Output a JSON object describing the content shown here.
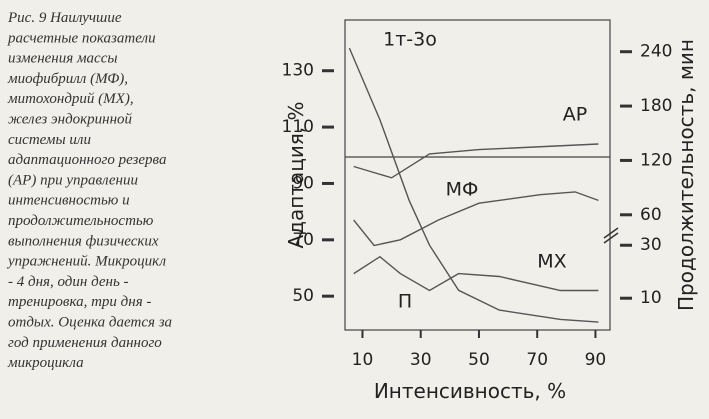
{
  "caption": [
    "Рис. 9 Наилучшие",
    "расчетные показатели",
    "изменения массы",
    "миофибрилл (МФ),",
    "митохондрий (МХ),",
    "желез эндокринной",
    "системы или",
    "адаптационного резерва",
    "(АР) при управлении",
    "интенсивностью и",
    "продолжительностью",
    "выполнения физических",
    "упражнений. Микроцикл",
    "- 4 дня, один день -",
    "тренировка, три дня -",
    "отдых. Оценка дается за",
    "год применения данного",
    "микроцикла"
  ],
  "chart_data": {
    "type": "line",
    "subtitle": "1т-3о",
    "xlabel": "Интенсивность, %",
    "ylabel": "Адаптация, %",
    "y2label": "Продолжительность, мин",
    "xlim": [
      4,
      95
    ],
    "xticks": [
      10,
      30,
      50,
      70,
      90
    ],
    "ylim": [
      38,
      148
    ],
    "yticks": [
      50,
      70,
      90,
      110,
      130
    ],
    "y2segments": [
      {
        "lim": [
          -2,
          35
        ],
        "ticks": [
          10,
          30
        ]
      },
      {
        "lim": [
          41,
          275
        ],
        "ticks": [
          60,
          120,
          180,
          240
        ]
      }
    ],
    "reference_line": 99.4,
    "series": [
      {
        "name": "АР",
        "color": "#555",
        "x": [
          7,
          20,
          33,
          50,
          91
        ],
        "values": [
          96,
          92,
          100.5,
          102,
          104
        ]
      },
      {
        "name": "МФ",
        "color": "#555",
        "x": [
          7,
          14,
          23,
          36,
          50,
          71,
          83,
          91
        ],
        "values": [
          77,
          68,
          70,
          77,
          83,
          86,
          87,
          84
        ]
      },
      {
        "name": "МХ",
        "color": "#555",
        "x": [
          7,
          16,
          23,
          33,
          43,
          57,
          78,
          91
        ],
        "values": [
          58,
          64,
          58,
          52,
          58,
          57,
          52,
          52
        ]
      },
      {
        "name": "П",
        "color": "#555",
        "axis": "y2",
        "x": [
          5.5,
          16,
          26,
          33,
          43,
          57,
          78,
          91
        ],
        "values": [
          244,
          165,
          76,
          30,
          13,
          5.5,
          2,
          1
        ]
      }
    ]
  }
}
